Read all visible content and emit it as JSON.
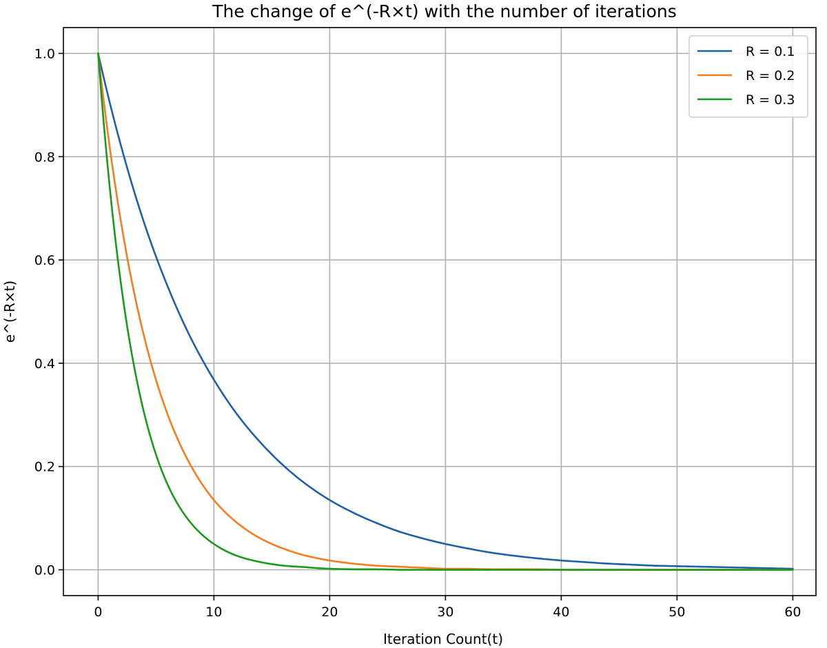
{
  "chart_data": {
    "type": "line",
    "title": "The change of e^(-R×t) with the number of iterations",
    "xlabel": "Iteration Count(t)",
    "ylabel": "e^(-R×t)",
    "xlim": [
      -3,
      62
    ],
    "ylim": [
      -0.05,
      1.05
    ],
    "xticks": [
      0,
      10,
      20,
      30,
      40,
      50,
      60
    ],
    "yticks": [
      0.0,
      0.2,
      0.4,
      0.6,
      0.8,
      1.0
    ],
    "grid": true,
    "legend_position": "top-right",
    "x": [
      0,
      2,
      4,
      6,
      8,
      10,
      12,
      14,
      16,
      18,
      20,
      22,
      24,
      26,
      28,
      30,
      32,
      34,
      36,
      38,
      40,
      42,
      44,
      46,
      48,
      50,
      52,
      54,
      56,
      58,
      60
    ],
    "series": [
      {
        "name": "R = 0.1",
        "color": "#1f5fa8",
        "values": [
          1.0,
          0.819,
          0.67,
          0.549,
          0.449,
          0.368,
          0.301,
          0.247,
          0.202,
          0.165,
          0.135,
          0.111,
          0.091,
          0.074,
          0.061,
          0.05,
          0.041,
          0.033,
          0.027,
          0.022,
          0.018,
          0.015,
          0.012,
          0.01,
          0.008,
          0.007,
          0.006,
          0.005,
          0.004,
          0.003,
          0.002
        ]
      },
      {
        "name": "R = 0.2",
        "color": "#f57c1f",
        "values": [
          1.0,
          0.67,
          0.449,
          0.301,
          0.202,
          0.135,
          0.091,
          0.061,
          0.041,
          0.027,
          0.018,
          0.012,
          0.008,
          0.006,
          0.004,
          0.002,
          0.002,
          0.001,
          0.001,
          0.001,
          0.0,
          0.0,
          0.0,
          0.0,
          0.0,
          0.0,
          0.0,
          0.0,
          0.0,
          0.0,
          0.0
        ]
      },
      {
        "name": "R = 0.3",
        "color": "#1a9a1a",
        "values": [
          1.0,
          0.549,
          0.301,
          0.165,
          0.091,
          0.05,
          0.027,
          0.015,
          0.008,
          0.005,
          0.002,
          0.001,
          0.001,
          0.0,
          0.0,
          0.0,
          0.0,
          0.0,
          0.0,
          0.0,
          0.0,
          0.0,
          0.0,
          0.0,
          0.0,
          0.0,
          0.0,
          0.0,
          0.0,
          0.0,
          0.0
        ]
      }
    ]
  }
}
